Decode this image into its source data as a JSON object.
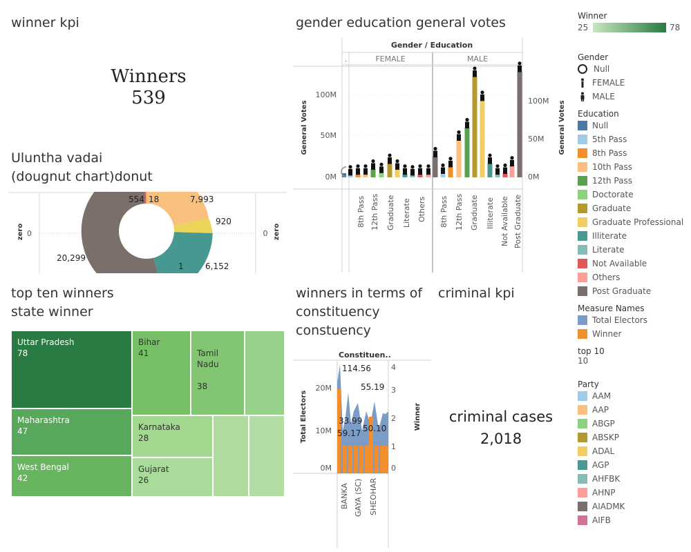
{
  "winner_kpi": {
    "title": "winner kpi",
    "label": "Winners",
    "value": "539"
  },
  "donut": {
    "title_line1": "Uluntha vadai",
    "title_line2": "(dougnut chart)donut",
    "axis_label": "zero",
    "zero_left": "0",
    "zero_right": "0",
    "labels": [
      "554",
      "18",
      "7,993",
      "920",
      "1",
      "6,152",
      "20,299"
    ],
    "colors": {
      "post_graduate": "#7a6f6a",
      "tenth": "#f9bf7c",
      "grad_prof": "#ecd45a",
      "illiterate": "#479891",
      "not_avail": "#e15759",
      "others": "#f69a9a"
    }
  },
  "votes_chart": {
    "title": "gender education general votes",
    "header": "Gender / Education",
    "dot": ".",
    "groups": [
      "FEMALE",
      "MALE"
    ],
    "y_title": "General Votes",
    "y_ticks": [
      "100M",
      "50M",
      "0M"
    ],
    "x_labels_female": [
      "8th Pass",
      "12th Pass",
      "Graduate",
      "Literate",
      "Others"
    ],
    "x_labels_male": [
      "8th Pass",
      "12th Pass",
      "Graduate",
      "Illiterate",
      "Not Available",
      "Post Graduate"
    ]
  },
  "chart_data": [
    {
      "type": "pie",
      "title": "(dougnut chart)donut",
      "categories": [
        "Post Graduate",
        "Not Available",
        "Others",
        "10th Pass",
        "Graduate Professional",
        "Literate",
        "Illiterate"
      ],
      "values": [
        20299,
        554,
        18,
        7993,
        920,
        1,
        6152
      ]
    },
    {
      "type": "bar",
      "title": "gender education general votes",
      "ylabel": "General Votes",
      "categories": [
        "Null",
        "F 5th Pass",
        "F 8th Pass",
        "F 10th Pass",
        "F 12th Pass",
        "F Doctorate",
        "F Graduate",
        "F Graduate Professional",
        "F Illiterate",
        "F Literate",
        "F Not Available",
        "F Others",
        "F Post Graduate",
        "M 5th Pass",
        "M 8th Pass",
        "M 10th Pass",
        "M 12th Pass",
        "M Graduate",
        "M Graduate Professional",
        "M Illiterate",
        "M Literate",
        "M Not Available",
        "M Others",
        "M Post Graduate"
      ],
      "values": [
        6,
        3,
        4,
        4,
        10,
        6,
        17,
        10,
        4,
        3,
        4,
        4,
        25,
        5,
        13,
        45,
        60,
        122,
        93,
        17,
        4,
        5,
        14,
        128
      ],
      "ylim": [
        0,
        135
      ]
    },
    {
      "type": "area",
      "title": "winners in terms of constituency constuency",
      "ylabel": "Total Electors",
      "x_labels": [
        "BANKA",
        "GAYA (SC)",
        "SHEOHAR"
      ],
      "annotations": [
        "114.56",
        "55.19",
        "33.99",
        "59.17",
        "50.10"
      ]
    },
    {
      "type": "treemap",
      "title": "state winner",
      "categories": [
        "Uttar Pradesh",
        "Maharashtra",
        "West Bengal",
        "Bihar",
        "Tamil Nadu",
        "Karnataka",
        "Gujarat"
      ],
      "values": [
        78,
        47,
        42,
        41,
        38,
        28,
        26
      ]
    }
  ],
  "treemap": {
    "title_line1": "top ten winners",
    "title_line2": "state winner",
    "cells": [
      {
        "name": "Uttar Pradesh",
        "value": "78"
      },
      {
        "name": "Maharashtra",
        "value": "47"
      },
      {
        "name": "West Bengal",
        "value": "42"
      },
      {
        "name": "Bihar",
        "value": "41"
      },
      {
        "name": "Tamil\nNadu",
        "value": "38"
      },
      {
        "name": "Karnataka",
        "value": "28"
      },
      {
        "name": "Gujarat",
        "value": "26"
      }
    ]
  },
  "constituency": {
    "title_line1": "winners in terms of",
    "title_line2": "constituency",
    "title_line3": "constuency",
    "header": "Constituen..",
    "y_left_title": "Total Electors",
    "y_right_title": "Winner",
    "y_left_ticks": [
      "20M",
      "10M",
      "0M"
    ],
    "y_right_ticks": [
      "4",
      "3",
      "2",
      "1",
      "0"
    ],
    "labels": [
      "114.56",
      "55.19",
      "33.99",
      "59.17",
      "50.10"
    ],
    "x_labels": [
      "BANKA",
      "GAYA (SC)",
      "SHEOHAR"
    ]
  },
  "criminal_kpi": {
    "title": "criminal kpi",
    "label": "criminal cases",
    "value": "2,018"
  },
  "legends": {
    "winner": {
      "title": "Winner",
      "min": "25",
      "max": "78"
    },
    "gender": {
      "title": "Gender",
      "items": [
        "Null",
        "FEMALE",
        "MALE"
      ]
    },
    "education": {
      "title": "Education",
      "items": [
        {
          "label": "Null",
          "color": "#4e79a7"
        },
        {
          "label": "5th Pass",
          "color": "#a0cbe8"
        },
        {
          "label": "8th Pass",
          "color": "#f28e2b"
        },
        {
          "label": "10th Pass",
          "color": "#ffbe7d"
        },
        {
          "label": "12th Pass",
          "color": "#59a14f"
        },
        {
          "label": "Doctorate",
          "color": "#8cd17d"
        },
        {
          "label": "Graduate",
          "color": "#b6992d"
        },
        {
          "label": "Graduate Professional",
          "color": "#f1ce63"
        },
        {
          "label": "Illiterate",
          "color": "#499894"
        },
        {
          "label": "Literate",
          "color": "#86bcb6"
        },
        {
          "label": "Not Available",
          "color": "#e15759"
        },
        {
          "label": "Others",
          "color": "#ff9d9a"
        },
        {
          "label": "Post Graduate",
          "color": "#79706e"
        }
      ]
    },
    "measure": {
      "title": "Measure Names",
      "items": [
        {
          "label": "Total Electors",
          "color": "#7a9cc6"
        },
        {
          "label": "Winner",
          "color": "#f28e2b"
        }
      ]
    },
    "top10": {
      "title": "top 10",
      "value": "10"
    },
    "party": {
      "title": "Party",
      "items": [
        {
          "label": "AAM",
          "color": "#a0cbe8"
        },
        {
          "label": "AAP",
          "color": "#ffbe7d"
        },
        {
          "label": "ABGP",
          "color": "#8cd17d"
        },
        {
          "label": "ABSKP",
          "color": "#b6992d"
        },
        {
          "label": "ADAL",
          "color": "#f1ce63"
        },
        {
          "label": "AGP",
          "color": "#499894"
        },
        {
          "label": "AHFBK",
          "color": "#86bcb6"
        },
        {
          "label": "AHNP",
          "color": "#ff9d9a"
        },
        {
          "label": "AIADMK",
          "color": "#79706e"
        },
        {
          "label": "AIFB",
          "color": "#d37295"
        }
      ]
    }
  }
}
